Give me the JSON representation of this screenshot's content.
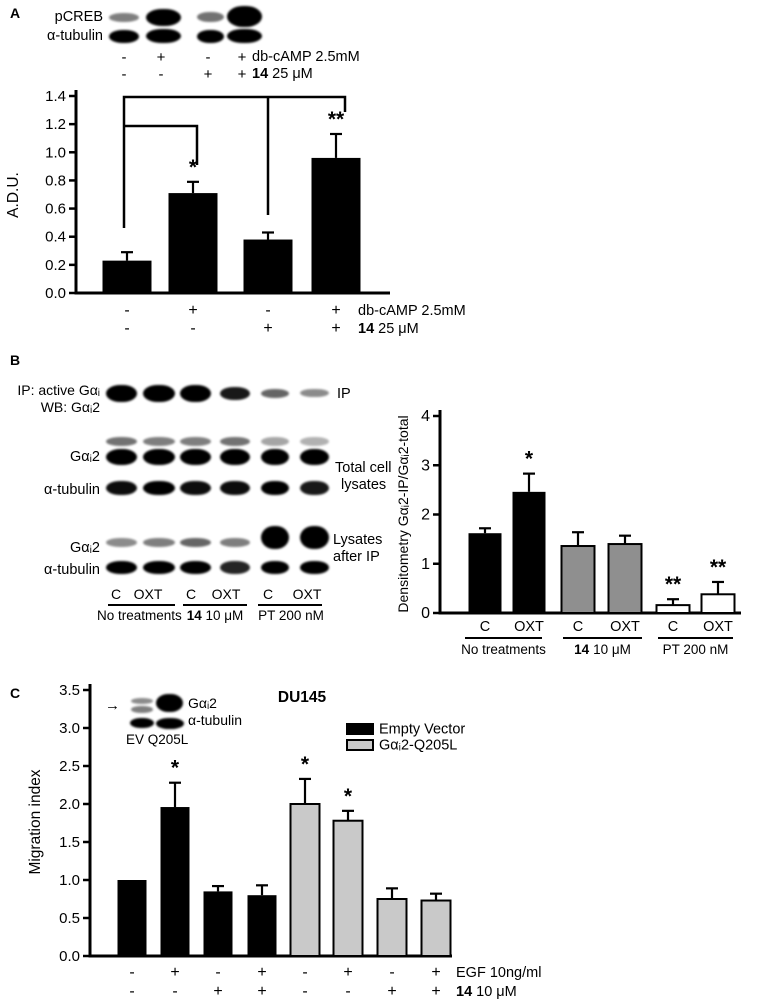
{
  "panels": {
    "A": {
      "label": "A",
      "blot": {
        "rows": [
          {
            "label": "pCREB",
            "intensities": [
              0.5,
              1,
              0.55,
              1
            ]
          },
          {
            "label": "α-tubulin",
            "intensities": [
              1,
              1,
              1,
              1
            ]
          }
        ],
        "treatment_rows": [
          {
            "symbols": [
              "-",
              "+",
              "-",
              "+"
            ],
            "label_bold": "",
            "label": "db-cAMP 2.5mM"
          },
          {
            "symbols": [
              "-",
              "-",
              "+",
              "+"
            ],
            "label_bold": "14",
            "label": " 25 μM"
          }
        ]
      }
    },
    "B": {
      "label": "B",
      "blot": {
        "ip_label_line1": "IP: active Gαᵢ",
        "ip_label_line2": "WB: Gαᵢ2",
        "ip_right_label": "IP",
        "total_label_gai2": "Gαᵢ2",
        "total_label_tubulin": "α-tubulin",
        "total_right_line1": "Total cell",
        "total_right_line2": "lysates",
        "after_label_gai2": "Gαᵢ2",
        "after_label_tubulin": "α-tubulin",
        "after_right_line1": "Lysates",
        "after_right_line2": "after IP",
        "rows": {
          "ip": {
            "intensities": [
              1,
              1,
              1,
              0.9,
              0.6,
              0.45
            ]
          },
          "gai2_total_upper": {
            "intensities": [
              0.55,
              0.5,
              0.5,
              0.55,
              0.35,
              0.3
            ]
          },
          "gai2_total_lower": {
            "intensities": [
              1,
              1,
              1,
              1,
              1,
              1
            ]
          },
          "tubulin_total": {
            "intensities": [
              0.95,
              1,
              0.95,
              0.95,
              1,
              0.9
            ]
          },
          "gai2_after": {
            "intensities": [
              0.45,
              0.5,
              0.6,
              0.5,
              1,
              1
            ]
          },
          "tubulin_after": {
            "intensities": [
              1,
              1,
              1,
              0.85,
              1,
              1
            ]
          }
        },
        "lane_labels": [
          "C",
          "OXT",
          "C",
          "OXT",
          "C",
          "OXT"
        ],
        "group_labels": [
          {
            "label_bold": "",
            "label": "No treatments"
          },
          {
            "label_bold": "14",
            "label": " 10 μM"
          },
          {
            "label_bold": "",
            "label": "PT 200 nM"
          }
        ]
      }
    },
    "C": {
      "label": "C",
      "inset_blot": {
        "arrow": "→",
        "row1_label": "Gαᵢ2",
        "row2_label": "α-tubulin",
        "lane_labels": "EV Q205L",
        "rows": {
          "gai2": {
            "intensities": [
              0.5,
              1
            ]
          },
          "tubulin": {
            "intensities": [
              1,
              1
            ]
          }
        }
      }
    }
  },
  "chart_data": [
    {
      "panel": "A",
      "type": "bar",
      "title": "",
      "xlabel": "",
      "ylabel": "A.D.U.",
      "ylim": [
        0,
        1.4
      ],
      "ytick_labels": [
        "0.0",
        "0.2",
        "0.4",
        "0.6",
        "0.8",
        "1.0",
        "1.2",
        "1.4"
      ],
      "categories": [
        "db-cAMP:- 14:-",
        "db-cAMP:+ 14:-",
        "db-cAMP:- 14:+",
        "db-cAMP:+ 14:+"
      ],
      "values": [
        0.23,
        0.71,
        0.38,
        0.96
      ],
      "errors": [
        0.06,
        0.08,
        0.05,
        0.17
      ],
      "significance": [
        "",
        "*",
        "",
        "**"
      ],
      "bar_colors": [
        "#000000",
        "#000000",
        "#000000",
        "#000000"
      ],
      "x_annotation_rows": [
        {
          "symbols": [
            "-",
            "+",
            "-",
            "+"
          ],
          "label_bold": "",
          "label": "db-cAMP 2.5mM"
        },
        {
          "symbols": [
            "-",
            "-",
            "+",
            "+"
          ],
          "label_bold": "14",
          "label": " 25 μM"
        }
      ]
    },
    {
      "panel": "B",
      "type": "bar",
      "title": "",
      "xlabel": "",
      "ylabel": "Densitometry Gαᵢ2-IP/Gαᵢ2-total",
      "ylim": [
        0,
        4
      ],
      "ytick_labels": [
        "0",
        "1",
        "2",
        "3",
        "4"
      ],
      "xtick_labels": [
        "C",
        "OXT",
        "C",
        "OXT",
        "C",
        "OXT"
      ],
      "values": [
        1.62,
        2.46,
        1.36,
        1.4,
        0.16,
        0.38
      ],
      "errors": [
        0.1,
        0.37,
        0.28,
        0.17,
        0.12,
        0.25
      ],
      "significance": [
        "",
        "*",
        "",
        "",
        "**",
        "**"
      ],
      "bar_colors": [
        "#000000",
        "#000000",
        "#8f8f8f",
        "#8f8f8f",
        "#ffffff",
        "#ffffff"
      ],
      "groups": [
        {
          "label_bold": "",
          "label": "No treatments"
        },
        {
          "label_bold": "14",
          "label": " 10 μM"
        },
        {
          "label_bold": "",
          "label": "PT 200 nM"
        }
      ]
    },
    {
      "panel": "C",
      "type": "bar",
      "title": "DU145",
      "xlabel": "",
      "ylabel": "Migration index",
      "ylim": [
        0,
        3.5
      ],
      "ytick_labels": [
        "0.0",
        "0.5",
        "1.0",
        "1.5",
        "2.0",
        "2.5",
        "3.0",
        "3.5"
      ],
      "values": [
        1.0,
        1.96,
        0.85,
        0.8,
        2.0,
        1.78,
        0.75,
        0.73
      ],
      "errors": [
        0,
        0.32,
        0.07,
        0.13,
        0.33,
        0.13,
        0.14,
        0.09
      ],
      "significance": [
        "",
        "*",
        "",
        "",
        "*",
        "*",
        "",
        ""
      ],
      "bar_colors": [
        "#000000",
        "#000000",
        "#000000",
        "#000000",
        "#c9c9c9",
        "#c9c9c9",
        "#c9c9c9",
        "#c9c9c9"
      ],
      "legend": [
        {
          "label": "Empty Vector",
          "color": "#000000"
        },
        {
          "label": "Gαᵢ2-Q205L",
          "color": "#c9c9c9"
        }
      ],
      "x_annotation_rows": [
        {
          "symbols": [
            "-",
            "+",
            "-",
            "+",
            "-",
            "+",
            "-",
            "+"
          ],
          "label_bold": "",
          "label": "EGF 10ng/ml"
        },
        {
          "symbols": [
            "-",
            "-",
            "+",
            "+",
            "-",
            "-",
            "+",
            "+"
          ],
          "label_bold": "14",
          "label": " 10 μM"
        }
      ]
    }
  ]
}
